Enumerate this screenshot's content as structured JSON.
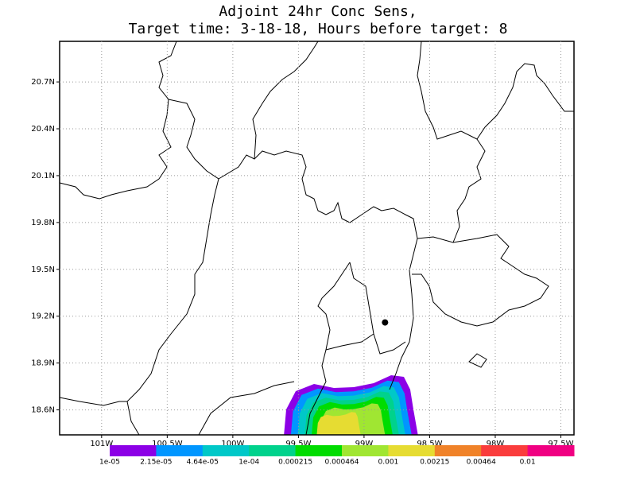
{
  "chart_data": {
    "type": "contour-map",
    "title": "Adjoint 24hr Conc Sens,",
    "subtitle": "Target time: 3-18-18, Hours before target: 8",
    "xlim": [
      -101.32,
      -97.4
    ],
    "ylim": [
      18.44,
      20.96
    ],
    "xticks": [
      {
        "value": -101,
        "label": "101W"
      },
      {
        "value": -100.5,
        "label": "100.5W"
      },
      {
        "value": -100,
        "label": "100W"
      },
      {
        "value": -99.5,
        "label": "99.5W"
      },
      {
        "value": -99,
        "label": "99W"
      },
      {
        "value": -98.5,
        "label": "98.5W"
      },
      {
        "value": -98,
        "label": "98W"
      },
      {
        "value": -97.5,
        "label": "97.5W"
      }
    ],
    "yticks": [
      {
        "value": 18.6,
        "label": "18.6N"
      },
      {
        "value": 18.9,
        "label": "18.9N"
      },
      {
        "value": 19.2,
        "label": "19.2N"
      },
      {
        "value": 19.5,
        "label": "19.5N"
      },
      {
        "value": 19.8,
        "label": "19.8N"
      },
      {
        "value": 20.1,
        "label": "20.1N"
      },
      {
        "value": 20.4,
        "label": "20.4N"
      },
      {
        "value": 20.7,
        "label": "20.7N"
      }
    ],
    "grid": true,
    "levels": [
      {
        "value": 1e-05,
        "label": "1e-05"
      },
      {
        "value": 2.15e-05,
        "label": "2.15e-05"
      },
      {
        "value": 4.64e-05,
        "label": "4.64e-05"
      },
      {
        "value": 0.0001,
        "label": "1e-04"
      },
      0.000215,
      0.000464,
      0.001,
      0.00215,
      0.00464,
      0.01
    ],
    "colors": [
      "#8c00e6",
      "#0096ff",
      "#00c8c8",
      "#00d28c",
      "#00dc00",
      "#a0e632",
      "#e6dc32",
      "#f08228",
      "#fa3c3c",
      "#f00082"
    ],
    "contour_levels_shown": 7,
    "points": {
      "x": [
        -98.84
      ],
      "y": [
        19.16
      ]
    }
  }
}
